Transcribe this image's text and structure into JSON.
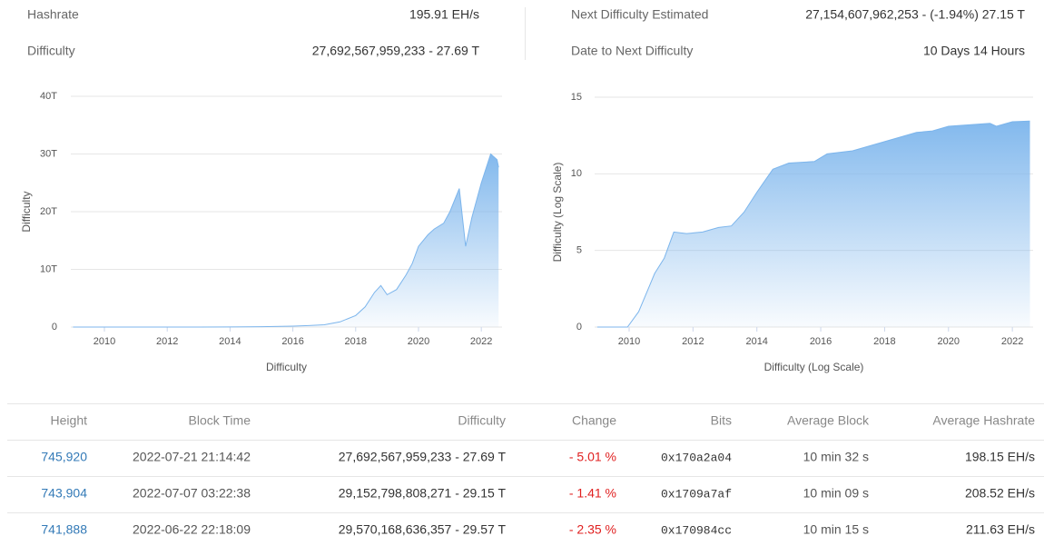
{
  "stats": [
    {
      "label": "Hashrate",
      "value": "195.91 EH/s"
    },
    {
      "label": "Difficulty",
      "value": "27,692,567,959,233 - 27.69 T"
    },
    {
      "label": "Next Difficulty Estimated",
      "value": "27,154,607,962,253 - (-1.94%) 27.15 T"
    },
    {
      "label": "Date to Next Difficulty",
      "value": "10 Days 14 Hours"
    }
  ],
  "chart_data": [
    {
      "type": "area",
      "x_label": "Difficulty",
      "y_label": "Difficulty",
      "color": "#7cb5ec",
      "x": [
        2009,
        2010,
        2011,
        2012,
        2013,
        2014,
        2015,
        2016,
        2016.5,
        2017,
        2017.5,
        2018,
        2018.3,
        2018.6,
        2018.8,
        2019,
        2019.3,
        2019.6,
        2019.8,
        2020,
        2020.3,
        2020.5,
        2020.8,
        2021,
        2021.3,
        2021.5,
        2021.7,
        2022,
        2022.3,
        2022.5,
        2022.55
      ],
      "values": [
        0,
        0,
        0,
        0,
        0,
        0.02,
        0.06,
        0.16,
        0.25,
        0.4,
        0.9,
        2,
        3.5,
        6,
        7.2,
        5.6,
        6.5,
        9,
        11,
        14,
        16,
        17,
        18,
        20,
        24,
        14,
        19,
        25,
        30,
        29,
        27.69
      ],
      "xlim": [
        2008.93,
        2022.66
      ],
      "ylim": [
        0,
        40
      ],
      "xticks": [
        2010,
        2012,
        2014,
        2016,
        2018,
        2020,
        2022
      ],
      "yticks": [
        0,
        {
          "value": 10,
          "label": "10T"
        },
        {
          "value": 20,
          "label": "20T"
        },
        {
          "value": 30,
          "label": "30T"
        },
        {
          "value": 40,
          "label": "40T"
        }
      ],
      "grid": true
    },
    {
      "type": "area",
      "x_label": "Difficulty (Log Scale)",
      "y_label": "Difficulty (Log Scale)",
      "color": "#7cb5ec",
      "x": [
        2009,
        2009.95,
        2010.3,
        2010.6,
        2010.8,
        2011.1,
        2011.4,
        2011.8,
        2012.3,
        2012.8,
        2013.2,
        2013.6,
        2014,
        2014.5,
        2015,
        2015.8,
        2016.2,
        2017,
        2018,
        2019,
        2019.5,
        2020,
        2021.3,
        2021.5,
        2022,
        2022.55
      ],
      "values": [
        0,
        0,
        1,
        2.5,
        3.5,
        4.5,
        6.2,
        6.1,
        6.2,
        6.5,
        6.6,
        7.5,
        8.8,
        10.3,
        10.7,
        10.8,
        11.3,
        11.5,
        12.1,
        12.7,
        12.8,
        13.1,
        13.3,
        13.1,
        13.4,
        13.44
      ],
      "xlim": [
        2008.92,
        2022.65
      ],
      "ylim": [
        0,
        15
      ],
      "xticks": [
        2010,
        2012,
        2014,
        2016,
        2018,
        2020,
        2022
      ],
      "yticks": [
        0,
        5,
        10,
        15
      ],
      "grid": true
    }
  ],
  "table": {
    "headers": [
      "Height",
      "Block Time",
      "Difficulty",
      "Change",
      "Bits",
      "Average Block",
      "Average Hashrate"
    ],
    "rows": [
      [
        "745,920",
        "2022-07-21 21:14:42",
        "27,692,567,959,233 - 27.69 T",
        "- 5.01 %",
        "0x170a2a04",
        "10 min 32 s",
        "198.15 EH/s"
      ],
      [
        "743,904",
        "2022-07-07 03:22:38",
        "29,152,798,808,271 - 29.15 T",
        "- 1.41 %",
        "0x1709a7af",
        "10 min 09 s",
        "208.52 EH/s"
      ],
      [
        "741,888",
        "2022-06-22 22:18:09",
        "29,570,168,636,357 - 29.57 T",
        "- 2.35 %",
        "0x170984cc",
        "10 min 15 s",
        "211.63 EH/s"
      ]
    ]
  }
}
